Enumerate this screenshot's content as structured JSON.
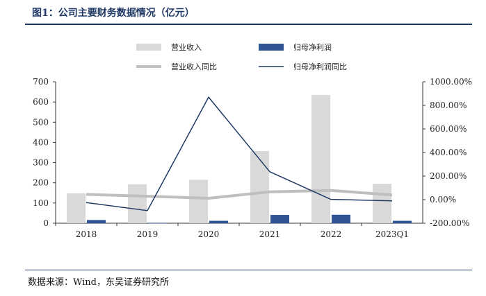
{
  "figure": {
    "title": "图1：公司主要财务数据情况（亿元）",
    "source": "数据来源：Wind，东吴证券研究所"
  },
  "colors": {
    "revenue_bar": "#d9d9d9",
    "profit_bar": "#2f5597",
    "revenue_yoy_line": "#bfbfbf",
    "profit_yoy_line": "#1f3864",
    "rule": "#1f3864"
  },
  "chart_data": {
    "type": "bar",
    "categories": [
      "2018",
      "2019",
      "2020",
      "2021",
      "2022",
      "2023Q1"
    ],
    "series": [
      {
        "name": "营业收入",
        "type": "bar",
        "axis": "left",
        "values": [
          148,
          192,
          215,
          357,
          635,
          195
        ]
      },
      {
        "name": "归母净利润",
        "type": "bar",
        "axis": "left",
        "values": [
          16,
          2,
          12,
          41,
          42,
          12
        ]
      },
      {
        "name": "营业收入同比",
        "type": "line",
        "axis": "right",
        "values": [
          45,
          29,
          12,
          66,
          78,
          40
        ]
      },
      {
        "name": "归母净利润同比",
        "type": "line",
        "axis": "right",
        "values": [
          -25,
          -93,
          870,
          237,
          2,
          -10
        ]
      }
    ],
    "y_left": {
      "range": [
        0,
        700
      ],
      "ticks": [
        "0",
        "100",
        "200",
        "300",
        "400",
        "500",
        "600",
        "700"
      ]
    },
    "y_right": {
      "range": [
        -200,
        1000
      ],
      "ticks": [
        "-200.00%",
        "0.00%",
        "200.00%",
        "400.00%",
        "600.00%",
        "800.00%",
        "1000.00%"
      ]
    },
    "legend_position": "top",
    "grid": false
  }
}
